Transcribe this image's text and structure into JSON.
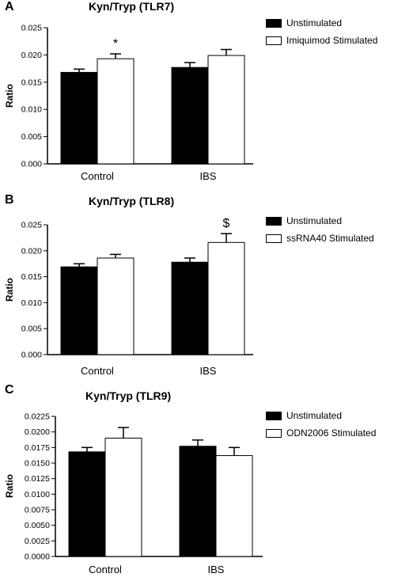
{
  "colors": {
    "unstimulated": "#000000",
    "stimulated": "#ffffff",
    "axis": "#000000"
  },
  "chart_data": [
    {
      "panel_label": "A",
      "type": "bar",
      "title": "Kyn/Tryp (TLR7)",
      "xlabel": "",
      "ylabel": "Ratio",
      "categories": [
        "Control",
        "IBS"
      ],
      "ylim": [
        0,
        0.025
      ],
      "yticks": [
        "0.000",
        "0.005",
        "0.010",
        "0.015",
        "0.020",
        "0.025"
      ],
      "grid": false,
      "legend_position": "top-right",
      "series": [
        {
          "name": "Unstimulated",
          "values": [
            0.0168,
            0.0177
          ],
          "errors": [
            0.0006,
            0.0009
          ]
        },
        {
          "name": "Imiquimod Stimulated",
          "values": [
            0.0193,
            0.0199
          ],
          "errors": [
            0.0009,
            0.0011
          ]
        }
      ],
      "annotations": [
        {
          "text": "*",
          "series": 1,
          "category": 0
        }
      ]
    },
    {
      "panel_label": "B",
      "type": "bar",
      "title": "Kyn/Tryp (TLR8)",
      "xlabel": "",
      "ylabel": "Ratio",
      "categories": [
        "Control",
        "IBS"
      ],
      "ylim": [
        0,
        0.025
      ],
      "yticks": [
        "0.000",
        "0.005",
        "0.010",
        "0.015",
        "0.020",
        "0.025"
      ],
      "grid": false,
      "legend_position": "top-right",
      "series": [
        {
          "name": "Unstimulated",
          "values": [
            0.0169,
            0.0178
          ],
          "errors": [
            0.0006,
            0.0008
          ]
        },
        {
          "name": "ssRNA40 Stimulated",
          "values": [
            0.0186,
            0.0216
          ],
          "errors": [
            0.0007,
            0.0017
          ]
        }
      ],
      "annotations": [
        {
          "text": "$",
          "series": 1,
          "category": 1
        }
      ]
    },
    {
      "panel_label": "C",
      "type": "bar",
      "title": "Kyn/Tryp (TLR9)",
      "xlabel": "",
      "ylabel": "Ratio",
      "categories": [
        "Control",
        "IBS"
      ],
      "ylim": [
        0,
        0.0225
      ],
      "yticks": [
        "0.0000",
        "0.0025",
        "0.0050",
        "0.0075",
        "0.0100",
        "0.0125",
        "0.0150",
        "0.0175",
        "0.0200",
        "0.0225"
      ],
      "grid": false,
      "legend_position": "top-right",
      "series": [
        {
          "name": "Unstimulated",
          "values": [
            0.0168,
            0.0177
          ],
          "errors": [
            0.0007,
            0.001
          ]
        },
        {
          "name": "ODN2006 Stimulated",
          "values": [
            0.019,
            0.0162
          ],
          "errors": [
            0.0017,
            0.0013
          ]
        }
      ],
      "annotations": []
    }
  ]
}
